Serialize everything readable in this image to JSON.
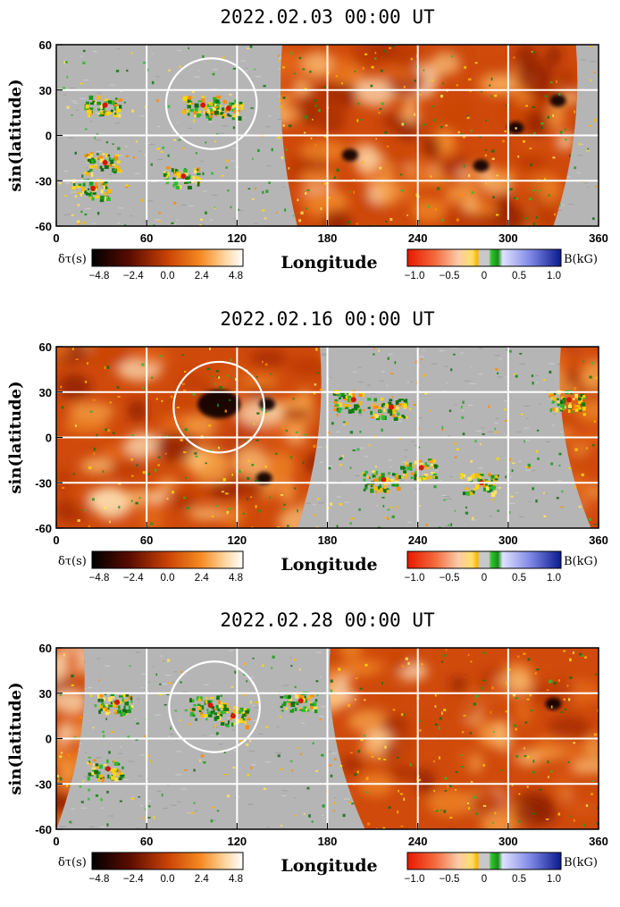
{
  "chart_data": [
    {
      "type": "heatmap",
      "title": "2022.02.03 00:00 UT",
      "xlabel": "Longitude",
      "ylabel": "sin(latitude)",
      "xlim": [
        0,
        360
      ],
      "ylim": [
        -60,
        60
      ],
      "xticks": [
        "0",
        "60",
        "120",
        "180",
        "240",
        "300",
        "360"
      ],
      "yticks": [
        "60",
        "30",
        "0",
        "-30",
        "-60"
      ],
      "grid": true,
      "farside_region": {
        "lon_start_top": 150,
        "lon_start_bottom": 160,
        "lon_end_top": 345,
        "lon_end_bottom": 330
      },
      "circle": {
        "center_lon": 103,
        "center_lat": 21,
        "radius_lat": 30
      },
      "dark_spots": [
        {
          "lon": 195,
          "lat": -13
        },
        {
          "lon": 282,
          "lat": -20
        },
        {
          "lon": 305,
          "lat": 5
        },
        {
          "lon": 333,
          "lat": 23
        }
      ],
      "active_regions": [
        {
          "lon": 30,
          "lat": 20
        },
        {
          "lon": 95,
          "lat": 20
        },
        {
          "lon": 112,
          "lat": 18
        },
        {
          "lon": 30,
          "lat": -18
        },
        {
          "lon": 22,
          "lat": -35
        },
        {
          "lon": 82,
          "lat": -27
        }
      ],
      "colorbar_left": {
        "label": "δτ(s)",
        "ticks": [
          "−4.8",
          "−2.4",
          "0.0",
          "2.4",
          "4.8"
        ]
      },
      "colorbar_right": {
        "label": "B(kG)",
        "ticks": [
          "−1.0",
          "−0.5",
          "0",
          "0.5",
          "1.0"
        ]
      }
    },
    {
      "type": "heatmap",
      "title": "2022.02.16 00:00 UT",
      "xlabel": "Longitude",
      "ylabel": "sin(latitude)",
      "xlim": [
        0,
        360
      ],
      "ylim": [
        -60,
        60
      ],
      "xticks": [
        "0",
        "60",
        "120",
        "180",
        "240",
        "300",
        "360"
      ],
      "yticks": [
        "60",
        "30",
        "0",
        "-30",
        "-60"
      ],
      "grid": true,
      "farside_regions": [
        {
          "lon_start": 0,
          "lon_end_top": 175,
          "lon_end_bottom": 160
        },
        {
          "lon_start_top": 335,
          "lon_start_bottom": 355,
          "lon_end": 360
        }
      ],
      "circle": {
        "center_lon": 108,
        "center_lat": 20,
        "radius_lat": 30
      },
      "dark_spots": [
        {
          "lon": 108,
          "lat": 22
        },
        {
          "lon": 140,
          "lat": 22
        },
        {
          "lon": 138,
          "lat": -27
        }
      ],
      "active_regions": [
        {
          "lon": 195,
          "lat": 25
        },
        {
          "lon": 220,
          "lat": 20
        },
        {
          "lon": 338,
          "lat": 25
        },
        {
          "lon": 215,
          "lat": -28
        },
        {
          "lon": 280,
          "lat": -30
        },
        {
          "lon": 240,
          "lat": -20
        }
      ],
      "colorbar_left": {
        "label": "δτ(s)",
        "ticks": [
          "−4.8",
          "−2.4",
          "0.0",
          "2.4",
          "4.8"
        ]
      },
      "colorbar_right": {
        "label": "B(kG)",
        "ticks": [
          "−1.0",
          "−0.5",
          "0",
          "0.5",
          "1.0"
        ]
      }
    },
    {
      "type": "heatmap",
      "title": "2022.02.28 00:00 UT",
      "xlabel": "Longitude",
      "ylabel": "sin(latitude)",
      "xlim": [
        0,
        360
      ],
      "ylim": [
        -60,
        60
      ],
      "xticks": [
        "0",
        "60",
        "120",
        "180",
        "240",
        "300",
        "360"
      ],
      "yticks": [
        "60",
        "30",
        "0",
        "-30",
        "-60"
      ],
      "grid": true,
      "farside_regions": [
        {
          "lon_start": 0,
          "lon_end_top": 18,
          "lon_end_bottom": 0
        },
        {
          "lon_start_top": 182,
          "lon_start_bottom": 205,
          "lon_end": 360
        }
      ],
      "circle": {
        "center_lon": 105,
        "center_lat": 21,
        "radius_lat": 30
      },
      "dark_spots": [
        {
          "lon": 330,
          "lat": 23
        }
      ],
      "active_regions": [
        {
          "lon": 38,
          "lat": 24
        },
        {
          "lon": 100,
          "lat": 22
        },
        {
          "lon": 115,
          "lat": 15
        },
        {
          "lon": 32,
          "lat": -20
        },
        {
          "lon": 160,
          "lat": 25
        }
      ],
      "colorbar_left": {
        "label": "δτ(s)",
        "ticks": [
          "−4.8",
          "−2.4",
          "0.0",
          "2.4",
          "4.8"
        ]
      },
      "colorbar_right": {
        "label": "B(kG)",
        "ticks": [
          "−1.0",
          "−0.5",
          "0",
          "0.5",
          "1.0"
        ]
      }
    }
  ]
}
